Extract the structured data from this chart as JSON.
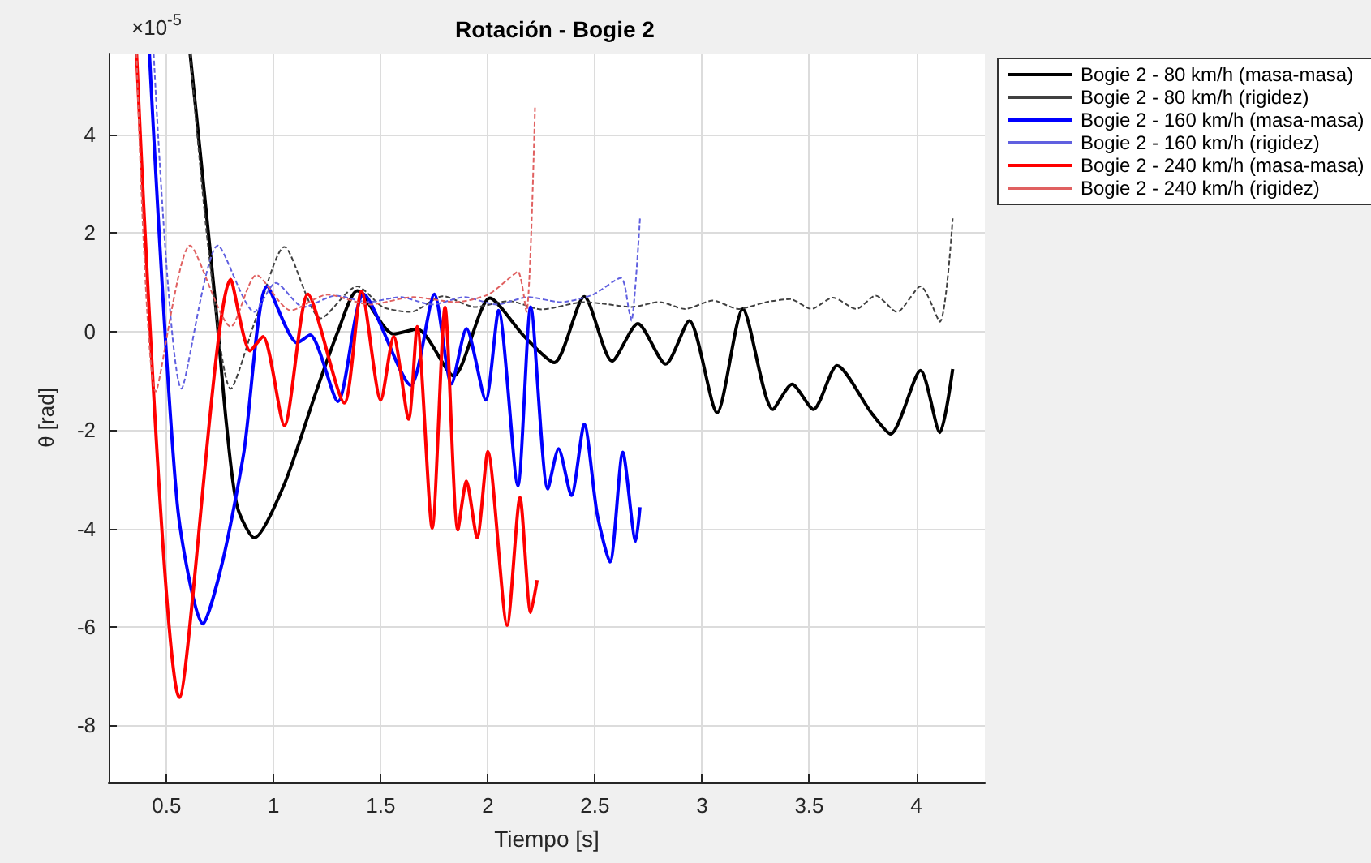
{
  "chart_data": {
    "type": "line",
    "title": "Rotación - Bogie 2",
    "xlabel": "Tiempo [s]",
    "ylabel": "θ [rad]",
    "annotations": [
      "×10$^{-5}$"
    ],
    "xlim": [
      0.23,
      4.32
    ],
    "ylim": [
      -9.15,
      5.65
    ],
    "xticks": [
      0.5,
      1,
      1.5,
      2,
      2.5,
      3,
      3.5,
      4
    ],
    "yticks": [
      -8,
      -6,
      -4,
      -2,
      0,
      2,
      4
    ],
    "grid": true,
    "legend": "right",
    "marker": "none",
    "series": [
      {
        "name": "Bogie 2 - 80 km/h (masa-masa)",
        "color": "#000000",
        "line_style": "solid",
        "x": [
          0.61,
          0.73,
          0.78,
          0.83,
          0.91,
          1.05,
          1.2,
          1.3,
          1.39,
          1.56,
          1.67,
          1.84,
          2.01,
          2.17,
          2.31,
          2.45,
          2.58,
          2.7,
          2.83,
          2.94,
          3.07,
          3.19,
          3.33,
          3.42,
          3.52,
          3.63,
          3.79,
          3.88,
          4.02,
          4.11,
          4.17
        ],
        "values": [
          5.65,
          0.5,
          -1.9,
          -3.56,
          -4.19,
          -3.1,
          -1.2,
          0,
          0.83,
          -0.05,
          0.05,
          -0.9,
          0.68,
          -0.1,
          -0.63,
          0.71,
          -0.6,
          0.16,
          -0.66,
          0.22,
          -1.65,
          0.46,
          -1.58,
          -1.07,
          -1.58,
          -0.69,
          -1.65,
          -2.08,
          -0.79,
          -2.05,
          -0.76
        ]
      },
      {
        "name": "Bogie 2 - 80 km/h (rigidez)",
        "color": "#404040",
        "line_style": "dashed",
        "x": [
          0.61,
          0.7,
          0.8,
          0.92,
          1.05,
          1.22,
          1.39,
          1.51,
          1.64,
          1.79,
          1.94,
          2.1,
          2.25,
          2.45,
          2.55,
          2.67,
          2.8,
          2.92,
          3.05,
          3.17,
          3.3,
          3.41,
          3.51,
          3.61,
          3.72,
          3.81,
          3.91,
          4.02,
          4.11,
          4.17
        ],
        "values": [
          5.65,
          1.5,
          -1.16,
          0.3,
          1.72,
          0.27,
          0.92,
          0.5,
          0.4,
          0.72,
          0.5,
          0.62,
          0.45,
          0.6,
          0.56,
          0.5,
          0.6,
          0.46,
          0.63,
          0.46,
          0.6,
          0.66,
          0.46,
          0.69,
          0.46,
          0.73,
          0.4,
          0.92,
          0.2,
          2.3
        ]
      },
      {
        "name": "Bogie 2 - 160 km/h (masa-masa)",
        "color": "#0000ff",
        "line_style": "solid",
        "x": [
          0.42,
          0.55,
          0.67,
          0.76,
          0.86,
          0.97,
          1.11,
          1.17,
          1.3,
          1.42,
          1.64,
          1.75,
          1.83,
          1.9,
          1.99,
          2.05,
          2.14,
          2.2,
          2.28,
          2.33,
          2.39,
          2.45,
          2.51,
          2.57,
          2.63,
          2.69,
          2.71
        ],
        "values": [
          5.65,
          -3.5,
          -5.94,
          -4.7,
          -2.48,
          0.92,
          -0.23,
          -0.07,
          -1.42,
          0.76,
          -1.09,
          0.76,
          -1.06,
          0.06,
          -1.39,
          0.43,
          -3.13,
          0.5,
          -3.2,
          -2.38,
          -3.33,
          -1.88,
          -3.7,
          -4.68,
          -2.45,
          -4.26,
          -3.57
        ]
      },
      {
        "name": "Bogie 2 - 160 km/h (rigidez)",
        "color": "#6060e0",
        "line_style": "dashed",
        "x": [
          0.44,
          0.57,
          0.74,
          0.91,
          1.01,
          1.14,
          1.29,
          1.44,
          1.59,
          1.74,
          1.89,
          2.04,
          2.19,
          2.34,
          2.49,
          2.62,
          2.66,
          2.67,
          2.71
        ],
        "values": [
          5.65,
          -1.16,
          1.75,
          0.4,
          0.99,
          0.5,
          0.73,
          0.6,
          0.7,
          0.55,
          0.7,
          0.55,
          0.7,
          0.6,
          0.75,
          1.09,
          0.4,
          0.22,
          2.3
        ]
      },
      {
        "name": "Bogie 2 - 240 km/h (masa-masa)",
        "color": "#ff0000",
        "line_style": "solid",
        "x": [
          0.36,
          0.56,
          0.8,
          0.89,
          0.95,
          1.05,
          1.16,
          1.33,
          1.41,
          1.5,
          1.56,
          1.63,
          1.67,
          1.74,
          1.8,
          1.86,
          1.9,
          1.95,
          2.0,
          2.09,
          2.15,
          2.2,
          2.23
        ],
        "values": [
          5.65,
          -7.43,
          1.06,
          -0.39,
          -0.1,
          -1.91,
          0.76,
          -1.45,
          0.82,
          -1.39,
          -0.1,
          -1.78,
          0.1,
          -3.99,
          0.49,
          -4.03,
          -3.04,
          -4.19,
          -2.44,
          -5.97,
          -3.37,
          -5.71,
          -5.05
        ]
      },
      {
        "name": "Bogie 2 - 240 km/h (rigidez)",
        "color": "#e06060",
        "line_style": "dashed",
        "x": [
          0.36,
          0.45,
          0.61,
          0.8,
          0.92,
          1.08,
          1.25,
          1.45,
          1.65,
          1.85,
          2.0,
          2.09,
          2.14,
          2.18,
          2.22
        ],
        "values": [
          5.65,
          -1.22,
          1.75,
          0.1,
          1.15,
          0.43,
          0.75,
          0.55,
          0.7,
          0.6,
          0.75,
          1.05,
          1.22,
          0.4,
          4.55
        ]
      }
    ]
  }
}
